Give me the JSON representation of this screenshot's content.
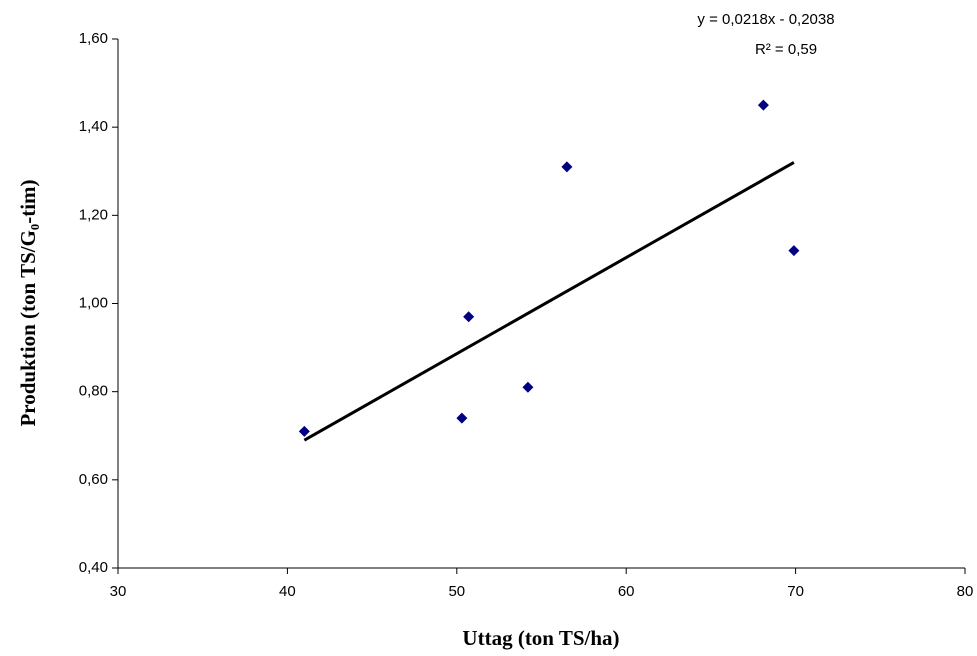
{
  "chart_data": {
    "type": "scatter",
    "x_label": "Uttag (ton TS/ha)",
    "y_label": "Produktion (ton TS/G₀-tim)",
    "annotations": [
      "y = 0,0218x - 0,2038",
      "R² = 0,59"
    ],
    "series": [
      {
        "color": "#000080",
        "x": [
          41.0,
          50.3,
          50.7,
          54.2,
          56.5,
          68.1,
          69.9
        ],
        "values": [
          0.71,
          0.74,
          0.97,
          0.81,
          1.31,
          1.45,
          1.12
        ]
      }
    ],
    "trendline": {
      "color": "#000000",
      "x": [
        41.0,
        69.9
      ],
      "values": [
        0.69,
        1.32
      ]
    },
    "xlim": [
      30,
      80
    ],
    "xticks": [
      30,
      40,
      50,
      60,
      70,
      80
    ],
    "ylim": [
      0.4,
      1.6
    ],
    "yticks": [
      {
        "value": 0.4,
        "label": "0,40"
      },
      {
        "value": 0.6,
        "label": "0,60"
      },
      {
        "value": 0.8,
        "label": "0,80"
      },
      {
        "value": 1.0,
        "label": "1,00"
      },
      {
        "value": 1.2,
        "label": "1,20"
      },
      {
        "value": 1.4,
        "label": "1,40"
      },
      {
        "value": 1.6,
        "label": "1,60"
      }
    ],
    "grid": false
  }
}
